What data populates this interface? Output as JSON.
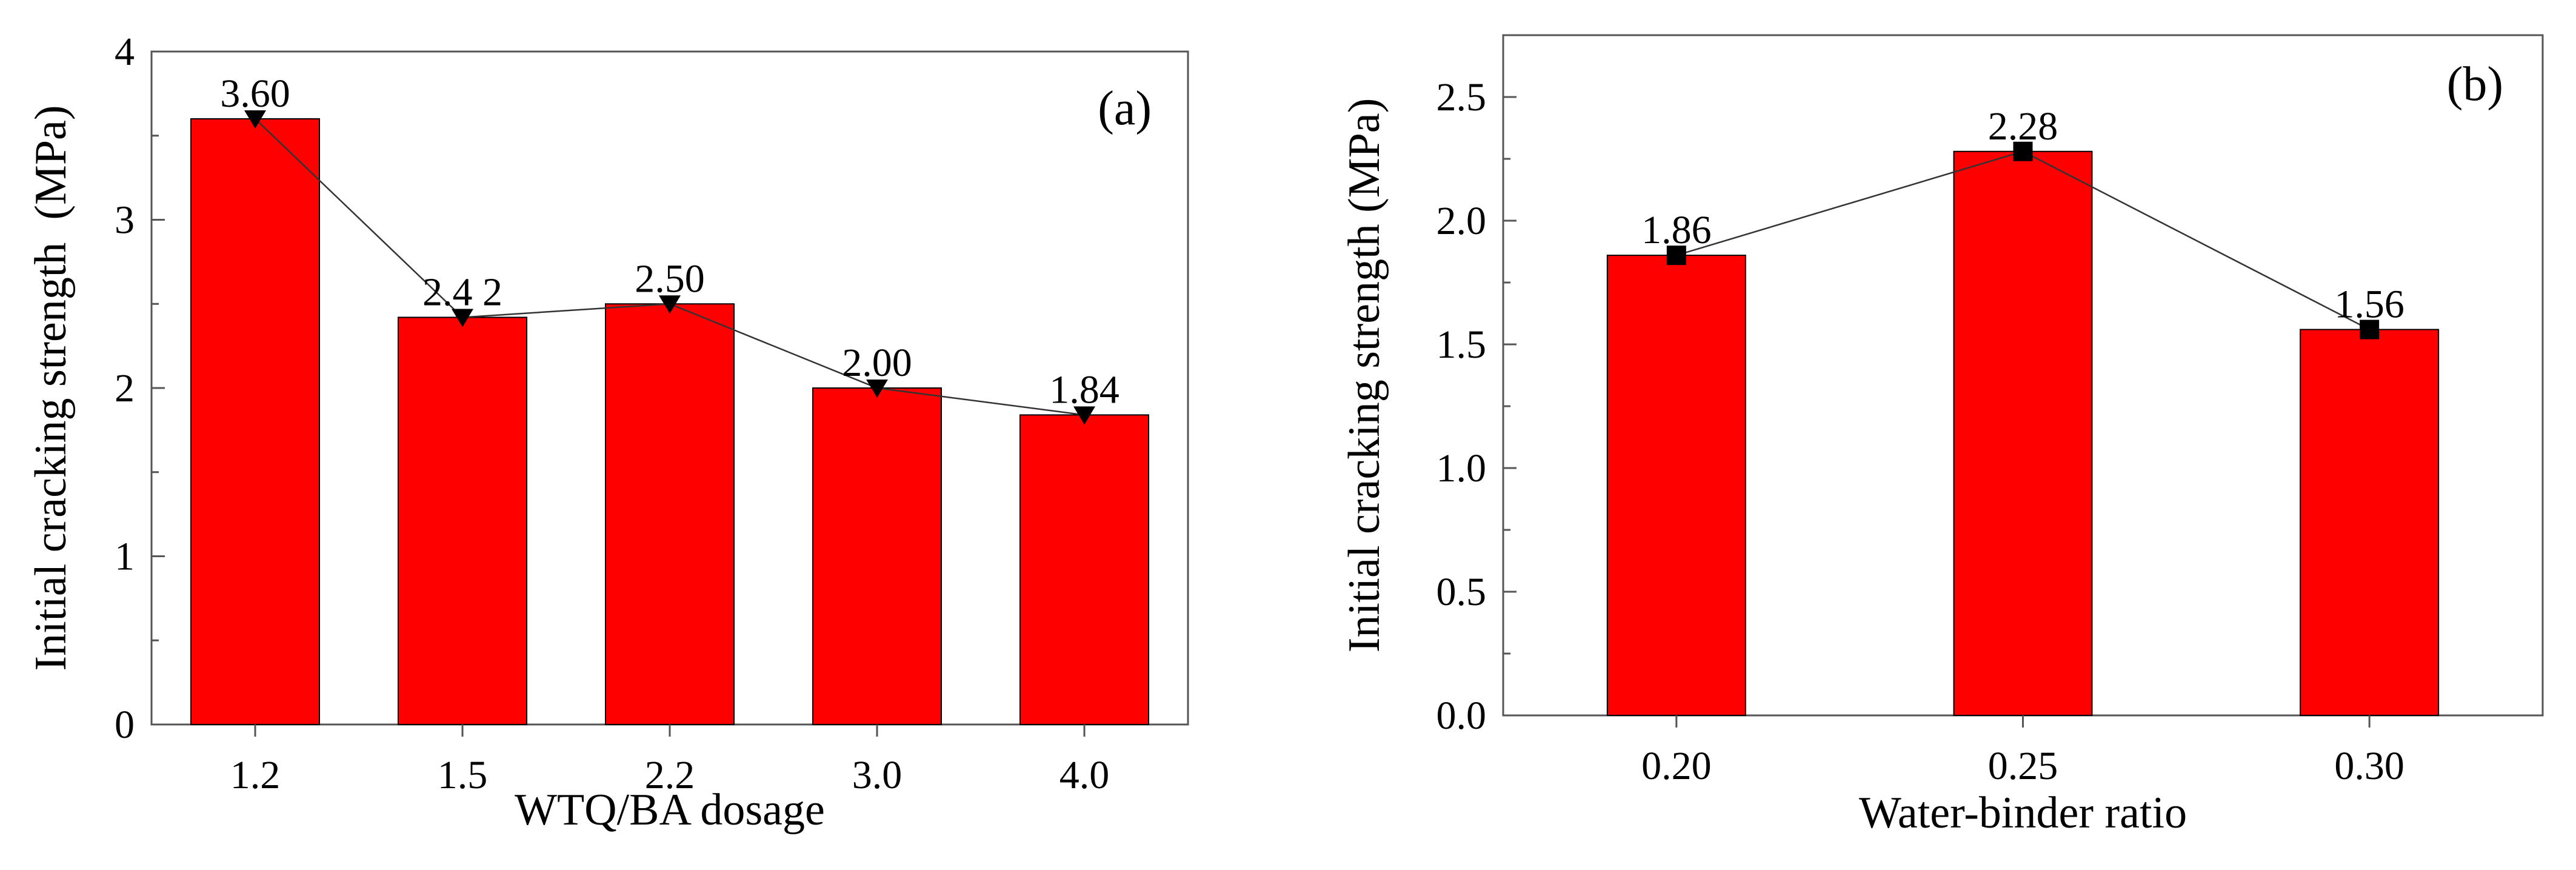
{
  "chart_data": [
    {
      "type": "bar",
      "panel_label": "(a)",
      "categories": [
        "1.2",
        "1.5",
        "2.2",
        "3.0",
        "4.0"
      ],
      "values": [
        3.6,
        2.42,
        2.5,
        2.0,
        1.84
      ],
      "data_labels": [
        "3.60",
        "2.4 2",
        "2.50",
        "2.00",
        "1.84"
      ],
      "overlay_line": {
        "marker": "down-triangle",
        "values": [
          3.6,
          2.42,
          2.5,
          2.0,
          1.84
        ]
      },
      "xlabel": "WTQ/BA dosage",
      "ylabel": "Initial cracking strength  (MPa)",
      "ylim": [
        0,
        4
      ],
      "yticks": [
        0,
        1,
        2,
        3,
        4
      ],
      "ytick_labels": [
        "0",
        "1",
        "2",
        "3",
        "4"
      ],
      "bar_color": "#ff0000",
      "grid": false
    },
    {
      "type": "bar",
      "panel_label": "(b)",
      "categories": [
        "0.20",
        "0.25",
        "0.30"
      ],
      "values": [
        1.86,
        2.28,
        1.56
      ],
      "data_labels": [
        "1.86",
        "2.28",
        "1.56"
      ],
      "overlay_line": {
        "marker": "square",
        "values": [
          1.86,
          2.28,
          1.56
        ]
      },
      "xlabel": "Water-binder ratio",
      "ylabel": "Initial cracking strength (MPa)",
      "ylim": [
        0,
        2.75
      ],
      "yticks": [
        0,
        0.5,
        1.0,
        1.5,
        2.0,
        2.5
      ],
      "ytick_labels": [
        "0.0",
        "0.5",
        "1.0",
        "1.5",
        "2.0",
        "2.5"
      ],
      "bar_color": "#ff0000",
      "grid": false
    }
  ]
}
